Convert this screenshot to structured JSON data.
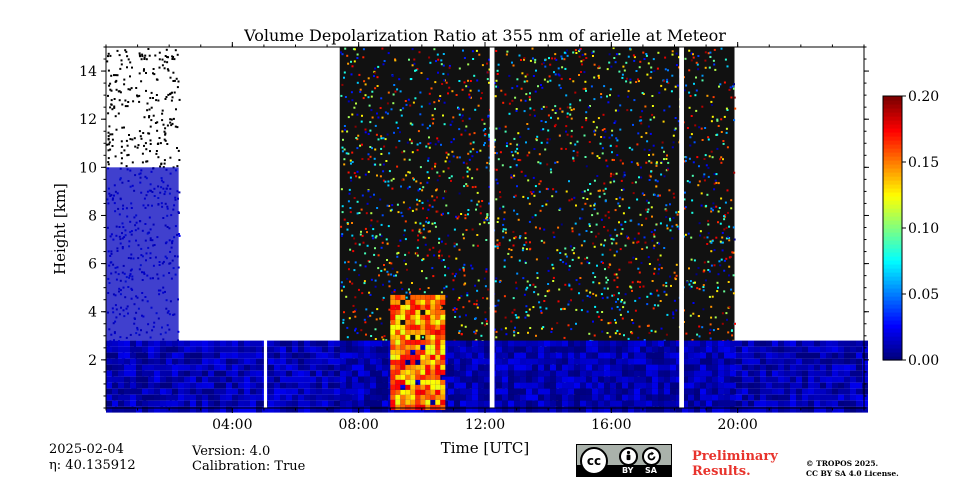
{
  "chart_data": {
    "type": "heatmap",
    "title": "Volume Depolarization Ratio at 355 nm of arielle at Meteor",
    "xlabel": "Time [UTC]",
    "ylabel": "Height [km]",
    "xlim_hours": [
      0,
      24
    ],
    "ylim_km": [
      0,
      15
    ],
    "x_ticks": [
      {
        "value": 4,
        "label": "04:00"
      },
      {
        "value": 8,
        "label": "08:00"
      },
      {
        "value": 12,
        "label": "12:00"
      },
      {
        "value": 16,
        "label": "16:00"
      },
      {
        "value": 20,
        "label": "20:00"
      }
    ],
    "y_ticks": [
      {
        "value": 2,
        "label": "2"
      },
      {
        "value": 4,
        "label": "4"
      },
      {
        "value": 6,
        "label": "6"
      },
      {
        "value": 8,
        "label": "8"
      },
      {
        "value": 10,
        "label": "10"
      },
      {
        "value": 12,
        "label": "12"
      },
      {
        "value": 14,
        "label": "14"
      }
    ],
    "colorbar": {
      "min": 0.0,
      "max": 0.2,
      "colormap": "jet",
      "ticks": [
        {
          "value": 0.0,
          "label": "0.00"
        },
        {
          "value": 0.05,
          "label": "0.05"
        },
        {
          "value": 0.1,
          "label": "0.10"
        },
        {
          "value": 0.15,
          "label": "0.15"
        },
        {
          "value": 0.2,
          "label": "0.20"
        }
      ]
    },
    "features": [
      {
        "name": "boundary-layer",
        "start_hour": 0.0,
        "end_hour": 24.0,
        "top_km": 2.8,
        "value": 0.01
      },
      {
        "name": "night-noise-early",
        "start_hour": 0.0,
        "end_hour": 2.3,
        "top_km": 15.0,
        "value": 0.01
      },
      {
        "name": "daytime-noise",
        "start_hour": 7.4,
        "end_hour": 19.9,
        "top_km": 15.0,
        "value": 0.1
      },
      {
        "name": "elevated-layer",
        "start_hour": 9.0,
        "end_hour": 10.6,
        "top_km": 4.7,
        "value": 0.15
      }
    ],
    "data_gaps_hours": [
      {
        "start": 5.0,
        "end": 5.1
      },
      {
        "start": 12.15,
        "end": 12.3
      },
      {
        "start": 18.15,
        "end": 18.3
      }
    ]
  },
  "metadata": {
    "date": "2025-02-04",
    "eta": "η: 40.135912",
    "version": "Version: 4.0",
    "calibration": "Calibration: True"
  },
  "license": {
    "badge_by": "BY",
    "badge_sa": "SA",
    "badge_cc": "cc",
    "preliminary_line1": "Preliminary",
    "preliminary_line2": "Results.",
    "copyright_line1": "© TROPOS 2025.",
    "copyright_line2": "CC BY SA 4.0 License."
  }
}
